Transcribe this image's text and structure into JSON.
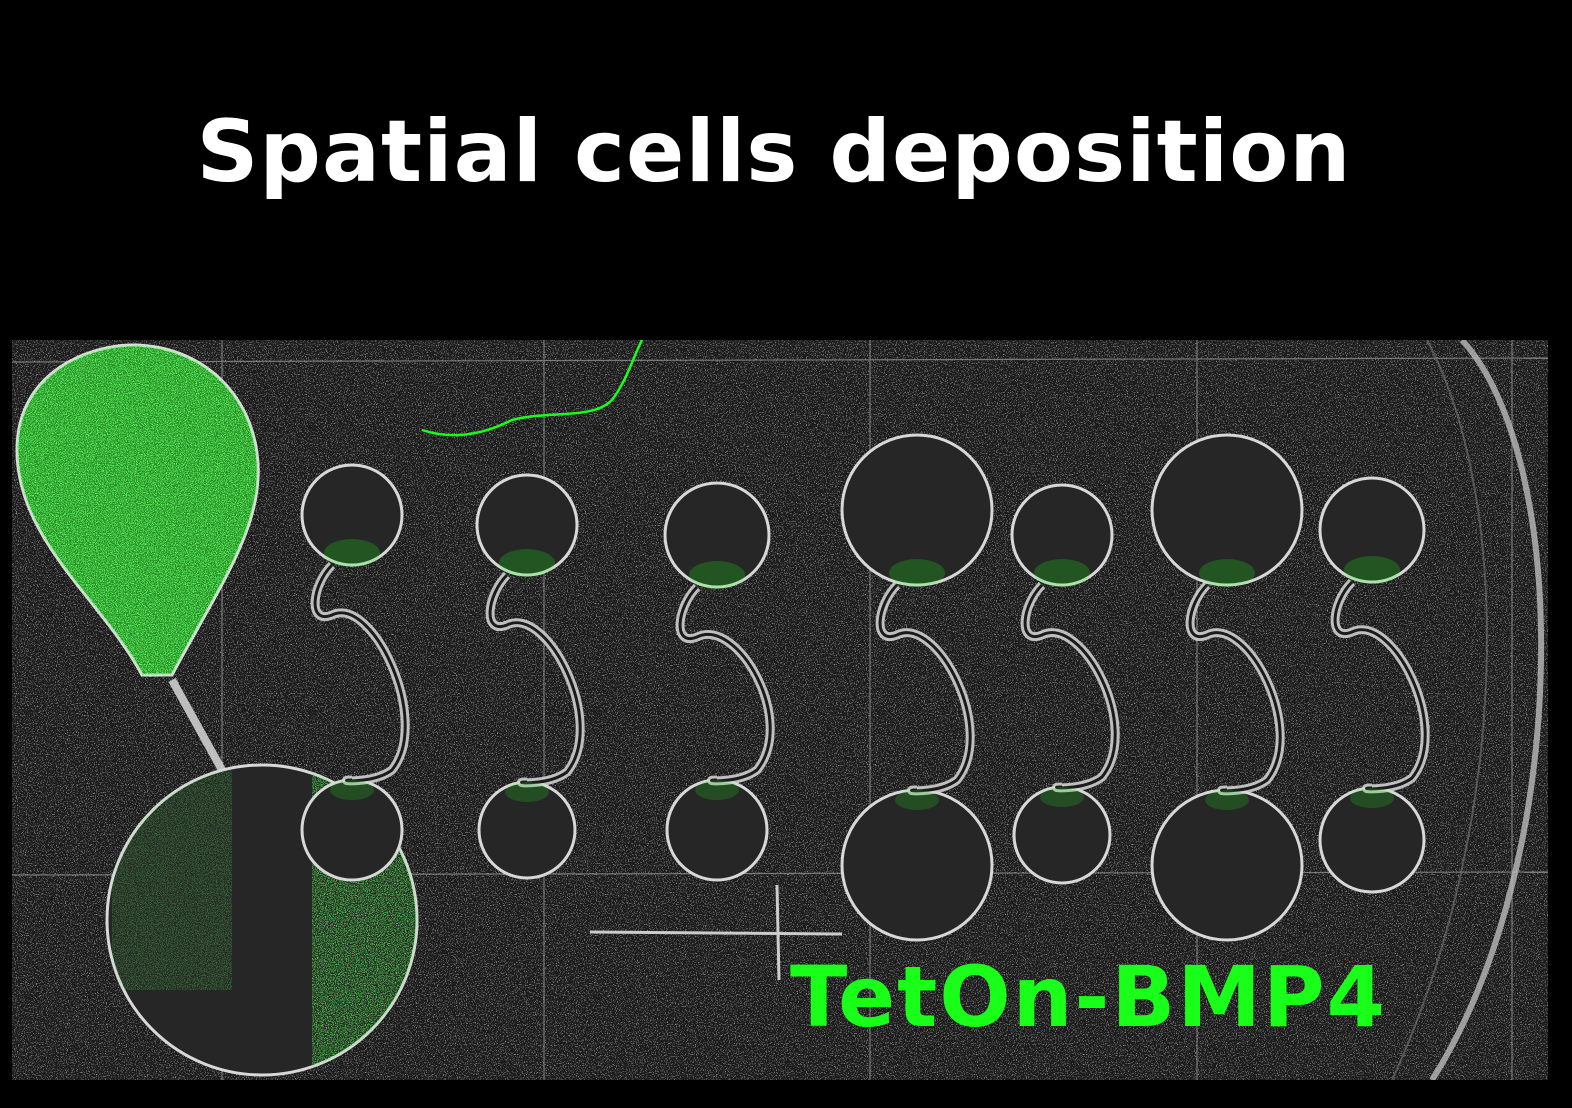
{
  "title": "Spatial cells deposition",
  "label": "TetOn-BMP4",
  "colors": {
    "background": "#000000",
    "micrograph_bg": "#1b1b1b",
    "channel_outline": "#d8d8d8",
    "fluorescence_green": "#19ff19"
  }
}
